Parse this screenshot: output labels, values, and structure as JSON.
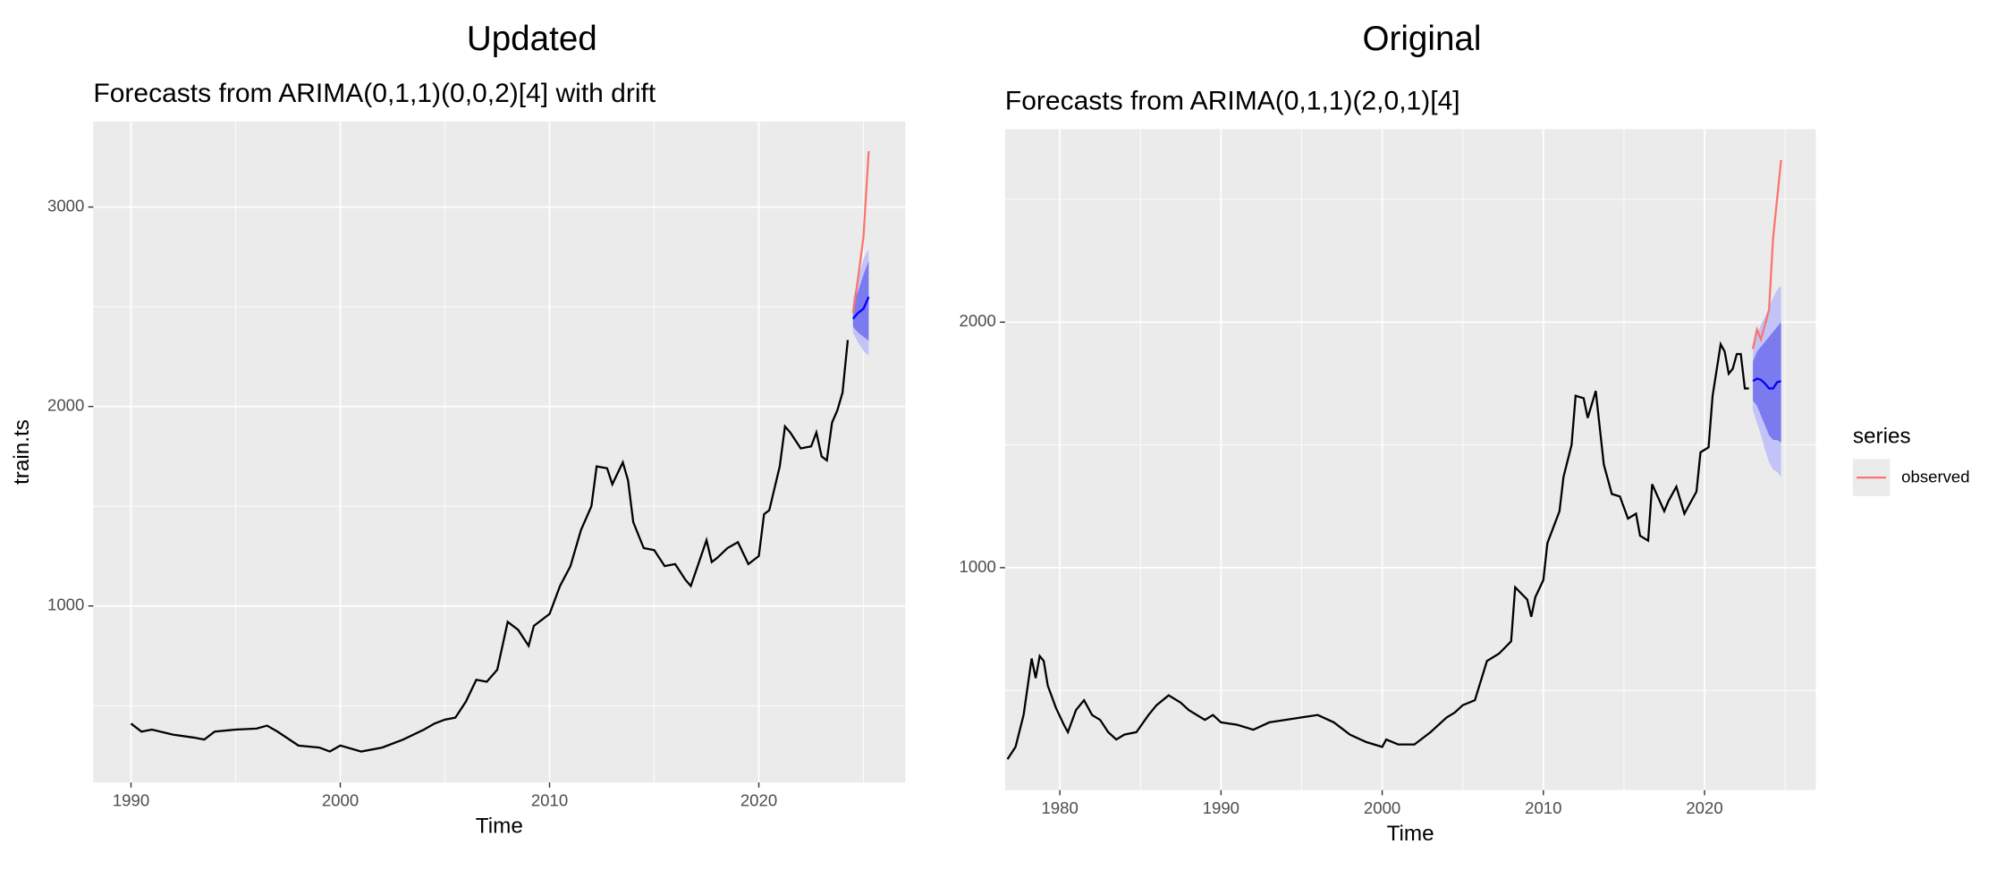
{
  "chart_data": [
    {
      "type": "line",
      "title": "Updated",
      "subtitle": "Forecasts from ARIMA(0,1,1)(0,0,2)[4] with drift",
      "xlabel": "Time",
      "ylabel": "train.ts",
      "xlim": [
        1988.2,
        2027.0
      ],
      "ylim": [
        115,
        3429
      ],
      "xticks": [
        1990,
        2000,
        2010,
        2020
      ],
      "yticks": [
        1000,
        2000,
        3000
      ],
      "grid": true,
      "series": [
        {
          "color": "#000000",
          "x": [
            1990.0,
            1990.5,
            1991.0,
            1992.0,
            1993.0,
            1993.5,
            1994.0,
            1995.0,
            1996.0,
            1996.5,
            1997.0,
            1998.0,
            1999.0,
            1999.5,
            2000.0,
            2001.0,
            2002.0,
            2003.0,
            2004.0,
            2004.5,
            2005.0,
            2005.5,
            2006.0,
            2006.5,
            2007.0,
            2007.5,
            2008.0,
            2008.5,
            2009.0,
            2009.25,
            2010.0,
            2010.5,
            2011.0,
            2011.5,
            2012.0,
            2012.25,
            2012.75,
            2013.0,
            2013.5,
            2013.75,
            2014.0,
            2014.5,
            2015.0,
            2015.5,
            2016.0,
            2016.5,
            2016.75,
            2017.5,
            2017.75,
            2018.0,
            2018.5,
            2019.0,
            2019.5,
            2020.0,
            2020.25,
            2020.5,
            2021.0,
            2021.25,
            2021.5,
            2022.0,
            2022.5,
            2022.75,
            2023.0,
            2023.25,
            2023.5,
            2023.75,
            2024.0,
            2024.25
          ],
          "values": [
            410,
            370,
            380,
            355,
            340,
            330,
            370,
            380,
            385,
            400,
            370,
            300,
            290,
            270,
            300,
            270,
            290,
            330,
            380,
            410,
            430,
            440,
            520,
            630,
            620,
            680,
            920,
            880,
            800,
            900,
            960,
            1100,
            1200,
            1380,
            1500,
            1700,
            1690,
            1610,
            1720,
            1630,
            1420,
            1290,
            1280,
            1200,
            1210,
            1130,
            1100,
            1330,
            1220,
            1240,
            1290,
            1320,
            1210,
            1250,
            1460,
            1480,
            1700,
            1900,
            1870,
            1790,
            1800,
            1870,
            1750,
            1730,
            1920,
            1980,
            2070,
            2333
          ]
        },
        {
          "color": "#0000ff",
          "x": [
            2024.5,
            2024.75,
            2025.0,
            2025.25
          ],
          "values": [
            2440,
            2470,
            2490,
            2550
          ],
          "bands": [
            {
              "color": "#c3c3f7",
              "lower": [
                2370,
                2320,
                2280,
                2255
              ],
              "upper": [
                2540,
                2640,
                2740,
                2790
              ]
            },
            {
              "color": "#7b7bef",
              "lower": [
                2400,
                2370,
                2350,
                2330
              ],
              "upper": [
                2510,
                2580,
                2660,
                2730
              ]
            }
          ]
        },
        {
          "color": "#f8766d",
          "x": [
            2024.5,
            2024.75,
            2025.0,
            2025.25
          ],
          "values": [
            2470,
            2650,
            2850,
            3280
          ]
        }
      ]
    },
    {
      "type": "line",
      "title": "Original",
      "subtitle": "Forecasts from ARIMA(0,1,1)(2,0,1)[4]",
      "xlabel": "Time",
      "xlim": [
        1976.6,
        2026.9
      ],
      "ylim": [
        94,
        2786
      ],
      "xticks": [
        1980,
        1990,
        2000,
        2010,
        2020
      ],
      "yticks": [
        1000,
        2000
      ],
      "grid": true,
      "legend_title": "series",
      "legend": "right",
      "series": [
        {
          "color": "#000000",
          "x": [
            1976.75,
            1977.25,
            1977.75,
            1978.25,
            1978.5,
            1978.75,
            1979.0,
            1979.25,
            1979.75,
            1980.25,
            1980.5,
            1981.0,
            1981.5,
            1982.0,
            1982.5,
            1983.0,
            1983.5,
            1984.0,
            1984.75,
            1985.5,
            1986.0,
            1986.75,
            1987.5,
            1988.0,
            1989.0,
            1989.5,
            1990.0,
            1991.0,
            1992.0,
            1993.0,
            1994.0,
            1995.0,
            1996.0,
            1997.0,
            1998.0,
            1999.0,
            2000.0,
            2000.25,
            2001.0,
            2002.0,
            2003.0,
            2004.0,
            2004.5,
            2005.0,
            2005.75,
            2006.5,
            2007.25,
            2008.0,
            2008.25,
            2009.0,
            2009.25,
            2009.5,
            2010.0,
            2010.25,
            2011.0,
            2011.25,
            2011.75,
            2012.0,
            2012.5,
            2012.75,
            2013.25,
            2013.75,
            2014.25,
            2014.75,
            2015.25,
            2015.75,
            2016.0,
            2016.5,
            2016.75,
            2017.5,
            2017.75,
            2018.25,
            2018.75,
            2019.0,
            2019.5,
            2019.75,
            2020.25,
            2020.5,
            2021.0,
            2021.25,
            2021.5,
            2021.75,
            2022.0,
            2022.25,
            2022.5,
            2022.75
          ],
          "values": [
            220,
            270,
            400,
            630,
            550,
            640,
            620,
            520,
            430,
            360,
            330,
            420,
            460,
            400,
            380,
            330,
            300,
            320,
            330,
            400,
            440,
            480,
            450,
            420,
            380,
            400,
            370,
            360,
            340,
            370,
            380,
            390,
            400,
            370,
            320,
            290,
            270,
            300,
            280,
            280,
            330,
            390,
            410,
            440,
            460,
            620,
            650,
            700,
            920,
            870,
            800,
            880,
            950,
            1100,
            1230,
            1370,
            1500,
            1700,
            1690,
            1610,
            1720,
            1420,
            1300,
            1290,
            1200,
            1220,
            1130,
            1110,
            1340,
            1230,
            1270,
            1330,
            1220,
            1250,
            1310,
            1470,
            1490,
            1700,
            1910,
            1880,
            1790,
            1810,
            1870,
            1870,
            1730,
            1730
          ]
        },
        {
          "color": "#0000ff",
          "x": [
            2023.0,
            2023.25,
            2023.5,
            2023.75,
            2024.0,
            2024.25,
            2024.5,
            2024.75
          ],
          "values": [
            1760,
            1770,
            1765,
            1750,
            1730,
            1730,
            1755,
            1760
          ],
          "bands": [
            {
              "color": "#c3c3f7",
              "lower": [
                1640,
                1590,
                1540,
                1480,
                1430,
                1400,
                1390,
                1370
              ],
              "upper": [
                1880,
                1950,
                1990,
                2020,
                2060,
                2100,
                2130,
                2150
              ]
            },
            {
              "color": "#7b7bef",
              "lower": [
                1680,
                1660,
                1620,
                1580,
                1540,
                1520,
                1520,
                1510
              ],
              "upper": [
                1840,
                1880,
                1900,
                1920,
                1940,
                1960,
                1980,
                2000
              ]
            }
          ]
        },
        {
          "name": "observed",
          "color": "#f8766d",
          "x": [
            2023.0,
            2023.25,
            2023.5,
            2023.75,
            2024.0,
            2024.25,
            2024.5,
            2024.75
          ],
          "values": [
            1890,
            1970,
            1930,
            1990,
            2050,
            2340,
            2500,
            2660
          ]
        }
      ]
    }
  ]
}
